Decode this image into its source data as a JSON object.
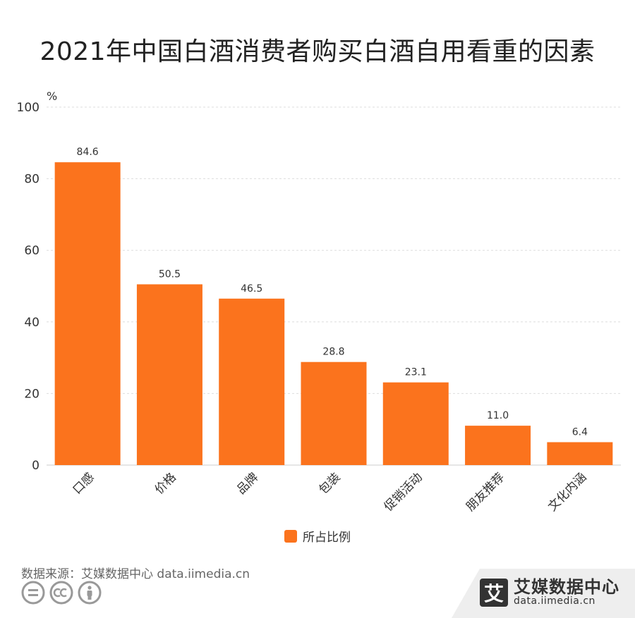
{
  "title": "2021年中国白酒消费者购买白酒自用看重的因素",
  "colors": {
    "bar": "#fb731d",
    "grid": "#dddddd",
    "axis": "#cccccc",
    "icon": "#999999"
  },
  "chart_data": {
    "type": "bar",
    "unit_label": "%",
    "categories": [
      "口感",
      "价格",
      "品牌",
      "包装",
      "促销活动",
      "朋友推荐",
      "文化内涵"
    ],
    "series": [
      {
        "name": "所占比例",
        "values": [
          84.6,
          50.5,
          46.5,
          28.8,
          23.1,
          11.0,
          6.4
        ]
      }
    ],
    "value_labels": [
      "84.6",
      "50.5",
      "46.5",
      "28.8",
      "23.1",
      "11.0",
      "6.4"
    ],
    "ylim": [
      0,
      100
    ],
    "yticks": [
      0,
      20,
      40,
      60,
      80,
      100
    ],
    "grid": true,
    "legend": "bottom-center"
  },
  "legend": {
    "label": "所占比例"
  },
  "footer": {
    "source": "数据来源：艾媒数据中心 data.iimedia.cn",
    "cc_icons": [
      "equals-icon",
      "cc-icon",
      "person-icon"
    ],
    "brand_logo": "艾",
    "brand_name": "艾媒数据中心",
    "brand_url": "data.iimedia.cn"
  }
}
